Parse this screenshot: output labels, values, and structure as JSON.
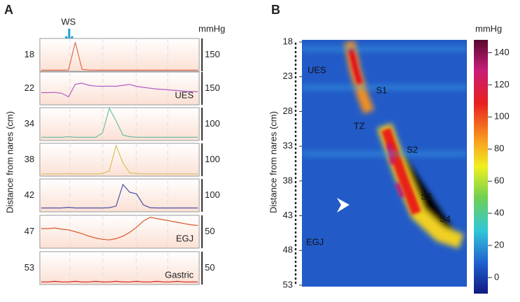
{
  "chart_data": [
    {
      "type": "line",
      "panel": "A",
      "marker_label": "WS",
      "unit": "mmHg",
      "ylabel": "Distance from nares (cm)",
      "rows": [
        {
          "depth": 18,
          "scale": 150,
          "color": "#e06a4a",
          "values": [
            2,
            2,
            2,
            2,
            3,
            135,
            6,
            3,
            2,
            2,
            2,
            2,
            2,
            2,
            2,
            2,
            2,
            2,
            2,
            2,
            2,
            2,
            2,
            2
          ]
        },
        {
          "name": "UES",
          "depth": 22,
          "scale": 150,
          "color": "#b05cc4",
          "values": [
            55,
            55,
            56,
            52,
            35,
            95,
            100,
            90,
            86,
            85,
            86,
            85,
            90,
            94,
            85,
            80,
            76,
            72,
            70,
            67,
            65,
            62,
            60,
            60
          ]
        },
        {
          "depth": 34,
          "scale": 100,
          "color": "#6cc0a4",
          "values": [
            8,
            8,
            8,
            8,
            10,
            8,
            8,
            8,
            8,
            22,
            100,
            60,
            15,
            10,
            8,
            8,
            8,
            8,
            8,
            8,
            8,
            8,
            8,
            8
          ]
        },
        {
          "depth": 38,
          "scale": 100,
          "color": "#d8c060",
          "values": [
            5,
            5,
            5,
            5,
            6,
            5,
            5,
            5,
            5,
            6,
            15,
            95,
            40,
            8,
            6,
            5,
            5,
            5,
            5,
            5,
            5,
            5,
            5,
            5
          ]
        },
        {
          "depth": 42,
          "scale": 100,
          "color": "#4852a4",
          "values": [
            10,
            10,
            10,
            10,
            12,
            10,
            10,
            10,
            10,
            10,
            11,
            16,
            85,
            60,
            55,
            20,
            11,
            10,
            10,
            10,
            10,
            10,
            10,
            10
          ]
        },
        {
          "name": "EGJ",
          "depth": 47,
          "scale": 50,
          "color": "#d8582a",
          "values": [
            30,
            30,
            31,
            29,
            28,
            25,
            22,
            18,
            15,
            13,
            12,
            14,
            18,
            24,
            32,
            42,
            48,
            46,
            44,
            42,
            40,
            38,
            36,
            35
          ]
        },
        {
          "name": "Gastric",
          "depth": 53,
          "scale": 50,
          "color": "#d42020",
          "values": [
            3,
            3,
            4,
            3,
            3,
            4,
            3,
            3,
            4,
            3,
            3,
            4,
            3,
            3,
            4,
            3,
            3,
            4,
            3,
            3,
            4,
            3,
            3,
            3
          ]
        }
      ]
    },
    {
      "type": "heatmap",
      "panel": "B",
      "ylabel": "Distance from nares (cm)",
      "ylim": [
        18,
        53
      ],
      "yticks": [
        18,
        23,
        28,
        33,
        38,
        43,
        48,
        53
      ],
      "annotations": [
        "UES",
        "S1",
        "TZ",
        "S2",
        "S3",
        "S4",
        "EGJ"
      ],
      "colorbar": {
        "label": "mmHg",
        "lim": [
          -10,
          148
        ],
        "ticks": [
          0,
          20,
          40,
          60,
          80,
          100,
          120,
          140
        ]
      }
    }
  ]
}
